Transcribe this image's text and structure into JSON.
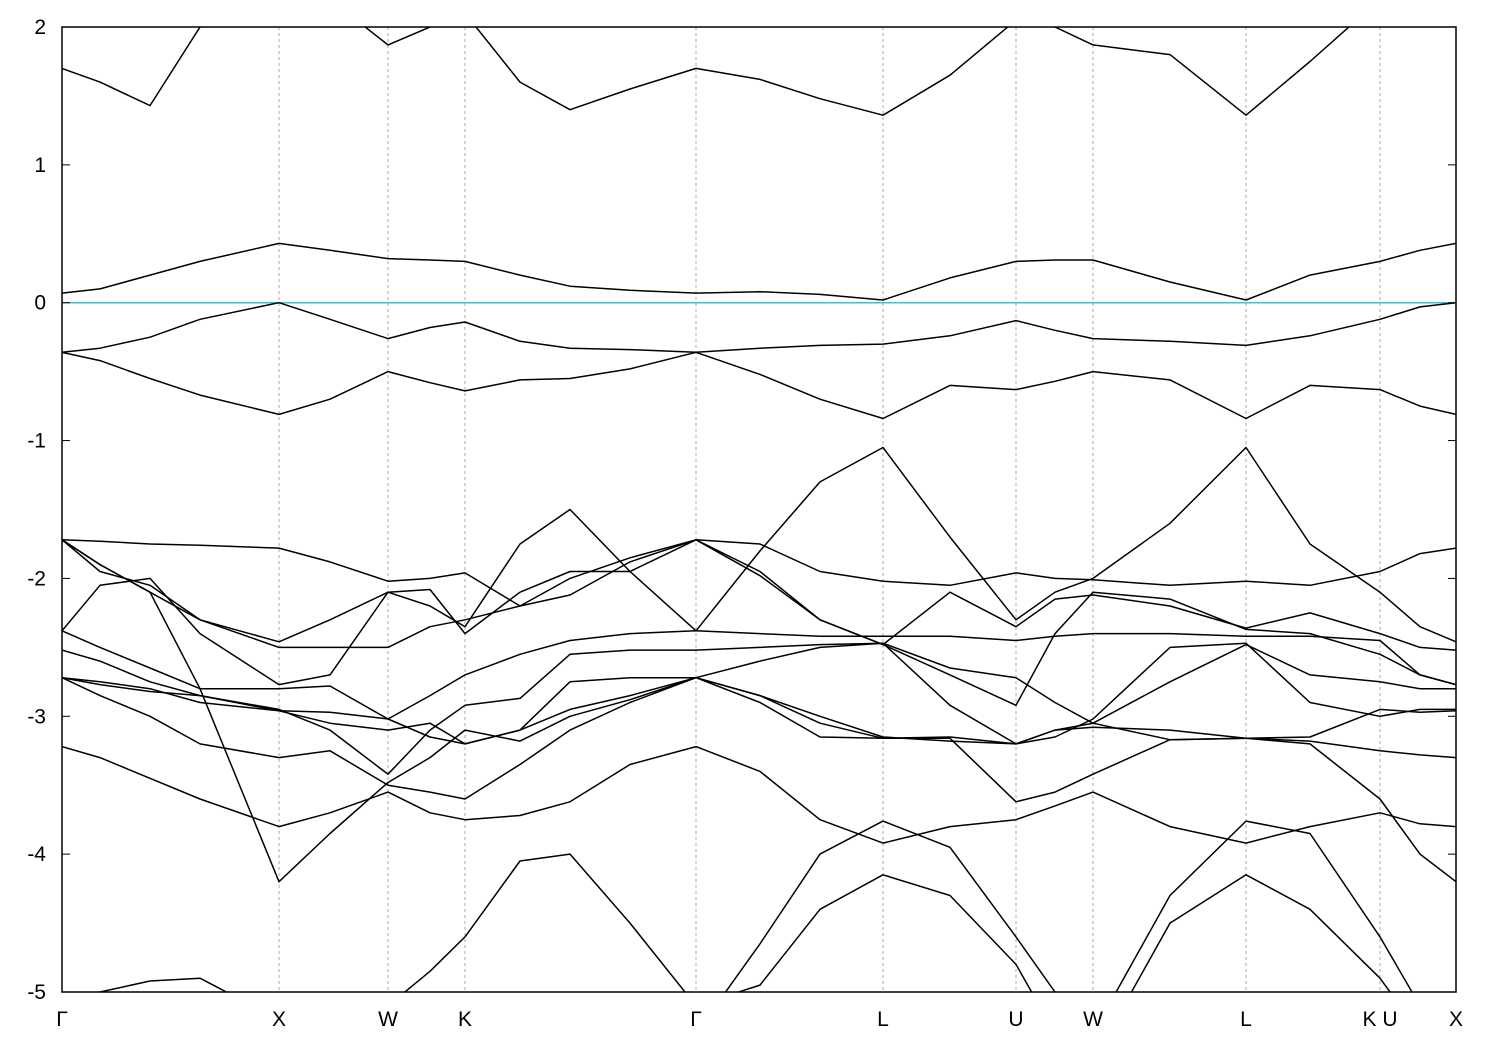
{
  "chart_data": {
    "type": "line",
    "x": [
      0,
      38,
      88,
      138,
      217,
      268,
      326,
      368,
      403,
      458,
      508,
      568,
      634,
      698,
      758,
      821,
      888,
      954,
      993,
      1031,
      1108,
      1184,
      1248,
      1318,
      1358,
      1394
    ],
    "xlim": [
      0,
      1394
    ],
    "xticks": [
      {
        "value": 0,
        "label": "Γ"
      },
      {
        "value": 217,
        "label": "X"
      },
      {
        "value": 326,
        "label": "W"
      },
      {
        "value": 403,
        "label": "K"
      },
      {
        "value": 634,
        "label": "Γ"
      },
      {
        "value": 821,
        "label": "L"
      },
      {
        "value": 954,
        "label": "U"
      },
      {
        "value": 1031,
        "label": "W"
      },
      {
        "value": 1184,
        "label": "L"
      },
      {
        "value": 1318,
        "label": "K U"
      },
      {
        "value": 1394,
        "label": "X"
      }
    ],
    "ylim": [
      -5,
      2
    ],
    "yticks": [
      -5,
      -4,
      -3,
      -2,
      -1,
      0,
      1,
      2
    ],
    "grid": true,
    "color": "#000000",
    "hline": 0,
    "hline_color": "#5ab4c8",
    "series": [
      {
        "values": [
          1.7,
          1.6,
          1.43,
          2.0,
          2.5,
          2.2,
          1.87,
          2.0,
          2.1,
          1.6,
          1.4,
          1.55,
          1.7,
          1.62,
          1.48,
          1.36,
          1.65,
          2.05,
          2.0,
          1.87,
          1.8,
          1.36,
          1.75,
          2.2,
          2.4,
          2.5
        ]
      },
      {
        "values": [
          0.07,
          0.1,
          0.2,
          0.3,
          0.43,
          0.38,
          0.32,
          0.31,
          0.3,
          0.2,
          0.12,
          0.09,
          0.07,
          0.08,
          0.06,
          0.02,
          0.18,
          0.3,
          0.31,
          0.31,
          0.15,
          0.02,
          0.2,
          0.3,
          0.38,
          0.43
        ]
      },
      {
        "values": [
          -0.36,
          -0.33,
          -0.25,
          -0.12,
          0.0,
          -0.12,
          -0.26,
          -0.18,
          -0.14,
          -0.28,
          -0.33,
          -0.34,
          -0.36,
          -0.33,
          -0.31,
          -0.3,
          -0.24,
          -0.13,
          -0.2,
          -0.26,
          -0.28,
          -0.31,
          -0.24,
          -0.12,
          -0.03,
          0.0
        ]
      },
      {
        "values": [
          -0.36,
          -0.42,
          -0.55,
          -0.67,
          -0.81,
          -0.7,
          -0.5,
          -0.58,
          -0.64,
          -0.56,
          -0.55,
          -0.48,
          -0.36,
          -0.52,
          -0.7,
          -0.84,
          -0.6,
          -0.63,
          -0.57,
          -0.5,
          -0.56,
          -0.84,
          -0.6,
          -0.63,
          -0.75,
          -0.81
        ]
      },
      {
        "values": [
          -1.72,
          -1.73,
          -1.75,
          -1.76,
          -1.78,
          -1.88,
          -2.02,
          -2.0,
          -1.96,
          -2.2,
          -2.12,
          -1.88,
          -1.72,
          -1.75,
          -1.95,
          -2.02,
          -2.05,
          -1.96,
          -2.0,
          -2.01,
          -2.05,
          -2.02,
          -2.05,
          -1.95,
          -1.82,
          -1.78
        ]
      },
      {
        "values": [
          -1.72,
          -1.9,
          -2.1,
          -2.3,
          -2.46,
          -2.3,
          -2.1,
          -2.2,
          -2.35,
          -1.75,
          -1.5,
          -1.95,
          -2.38,
          -1.8,
          -1.3,
          -1.05,
          -1.7,
          -2.3,
          -2.1,
          -2.0,
          -1.6,
          -1.05,
          -1.75,
          -2.1,
          -2.35,
          -2.46
        ]
      },
      {
        "values": [
          -1.72,
          -1.95,
          -2.05,
          -2.3,
          -2.5,
          -2.5,
          -2.5,
          -2.35,
          -2.3,
          -2.2,
          -2.0,
          -1.85,
          -1.72,
          -1.95,
          -2.3,
          -2.48,
          -2.1,
          -2.35,
          -2.15,
          -2.12,
          -2.2,
          -2.36,
          -2.25,
          -2.4,
          -2.5,
          -2.52
        ]
      },
      {
        "values": [
          -2.38,
          -2.05,
          -2.0,
          -2.4,
          -2.77,
          -2.7,
          -2.1,
          -2.08,
          -2.4,
          -2.1,
          -1.95,
          -1.95,
          -1.72,
          -1.98,
          -2.3,
          -2.48,
          -2.7,
          -2.92,
          -2.4,
          -2.1,
          -2.15,
          -2.37,
          -2.4,
          -2.55,
          -2.7,
          -2.77
        ]
      },
      {
        "values": [
          -2.38,
          -2.5,
          -2.65,
          -2.8,
          -2.8,
          -2.78,
          -3.02,
          -2.85,
          -2.7,
          -2.55,
          -2.45,
          -2.4,
          -2.38,
          -2.4,
          -2.42,
          -2.42,
          -2.42,
          -2.45,
          -2.42,
          -2.4,
          -2.4,
          -2.42,
          -2.42,
          -2.45,
          -2.7,
          -2.77
        ]
      },
      {
        "values": [
          -2.52,
          -2.6,
          -2.75,
          -2.85,
          -2.95,
          -3.1,
          -3.42,
          -3.1,
          -2.92,
          -2.87,
          -2.55,
          -2.52,
          -2.52,
          -2.5,
          -2.48,
          -2.47,
          -2.92,
          -3.2,
          -3.15,
          -3.02,
          -2.5,
          -2.47,
          -2.9,
          -3.0,
          -2.95,
          -2.95
        ]
      },
      {
        "values": [
          -2.72,
          -2.75,
          -2.8,
          -2.9,
          -2.96,
          -3.05,
          -3.1,
          -3.05,
          -3.2,
          -3.1,
          -2.75,
          -2.72,
          -2.72,
          -2.6,
          -2.5,
          -2.47,
          -2.65,
          -2.72,
          -2.9,
          -3.05,
          -2.75,
          -2.48,
          -2.7,
          -2.75,
          -2.8,
          -2.8
        ]
      },
      {
        "values": [
          -2.72,
          -2.77,
          -2.82,
          -2.85,
          -2.96,
          -2.97,
          -3.02,
          -3.15,
          -3.2,
          -3.1,
          -2.95,
          -2.85,
          -2.72,
          -2.85,
          -3.0,
          -3.15,
          -3.18,
          -3.2,
          -3.1,
          -3.08,
          -3.1,
          -3.16,
          -3.18,
          -3.25,
          -3.28,
          -3.3
        ]
      },
      {
        "values": [
          -2.72,
          -2.85,
          -3.0,
          -3.2,
          -3.3,
          -3.25,
          -3.5,
          -3.55,
          -3.6,
          -3.35,
          -3.1,
          -2.9,
          -2.72,
          -2.85,
          -3.05,
          -3.16,
          -3.16,
          -3.62,
          -3.55,
          -3.42,
          -3.17,
          -3.16,
          -3.15,
          -2.95,
          -2.97,
          -2.96
        ]
      },
      {
        "values": [
          -3.22,
          -3.3,
          -3.45,
          -3.6,
          -3.8,
          -3.7,
          -3.55,
          -3.7,
          -3.75,
          -3.72,
          -3.62,
          -3.35,
          -3.22,
          -3.4,
          -3.75,
          -3.92,
          -3.8,
          -3.75,
          -3.65,
          -3.55,
          -3.8,
          -3.92,
          -3.8,
          -3.7,
          -3.78,
          -3.8
        ]
      },
      {
        "values": [
          -1.72,
          -1.9,
          -2.1,
          -2.8,
          -4.2,
          -3.85,
          -3.48,
          -3.3,
          -3.1,
          -3.18,
          -3.0,
          -2.88,
          -2.72,
          -2.9,
          -3.15,
          -3.16,
          -3.15,
          -3.2,
          -3.1,
          -3.05,
          -3.17,
          -3.16,
          -3.2,
          -3.6,
          -4.0,
          -4.2
        ]
      },
      {
        "values": [
          -5.2,
          -5.0,
          -4.92,
          -4.9,
          -5.2,
          -5.5,
          -5.1,
          -4.85,
          -4.6,
          -4.05,
          -4.0,
          -4.5,
          -5.1,
          -4.95,
          -4.4,
          -4.15,
          -4.3,
          -4.8,
          -5.3,
          -5.5,
          -4.5,
          -4.15,
          -4.4,
          -4.9,
          -5.3,
          -5.5
        ]
      },
      {
        "values": [
          null,
          null,
          null,
          null,
          null,
          null,
          null,
          null,
          null,
          null,
          null,
          null,
          -5.3,
          -4.65,
          -4.0,
          -3.76,
          -3.95,
          -4.6,
          -5.0,
          -5.3,
          -4.3,
          -3.76,
          -3.85,
          -4.6,
          -5.1,
          -5.5
        ]
      }
    ]
  }
}
